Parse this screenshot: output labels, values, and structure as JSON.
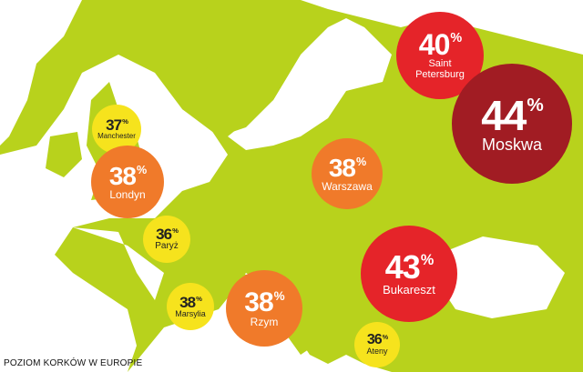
{
  "caption": "POZIOM KORKÓW W EUROPIE",
  "colors": {
    "land": "#b8d21c",
    "sea": "#ffffff",
    "yellow": "#f6e31d",
    "orange": "#f07a2a",
    "red": "#e52429",
    "darkred": "#a11c23"
  },
  "cities": [
    {
      "name": "Saint Petersburg",
      "value": "40",
      "unit": "%",
      "level": "red"
    },
    {
      "name": "Moskwa",
      "value": "44",
      "unit": "%",
      "level": "darkred"
    },
    {
      "name": "Manchester",
      "value": "37",
      "unit": "%",
      "level": "yellow"
    },
    {
      "name": "Londyn",
      "value": "38",
      "unit": "%",
      "level": "orange"
    },
    {
      "name": "Warszawa",
      "value": "38",
      "unit": "%",
      "level": "orange"
    },
    {
      "name": "Paryż",
      "value": "36",
      "unit": "%",
      "level": "yellow"
    },
    {
      "name": "Bukareszt",
      "value": "43",
      "unit": "%",
      "level": "red"
    },
    {
      "name": "Marsylia",
      "value": "38",
      "unit": "%",
      "level": "yellow"
    },
    {
      "name": "Rzym",
      "value": "38",
      "unit": "%",
      "level": "orange"
    },
    {
      "name": "Ateny",
      "value": "36",
      "unit": "%",
      "level": "yellow"
    }
  ]
}
